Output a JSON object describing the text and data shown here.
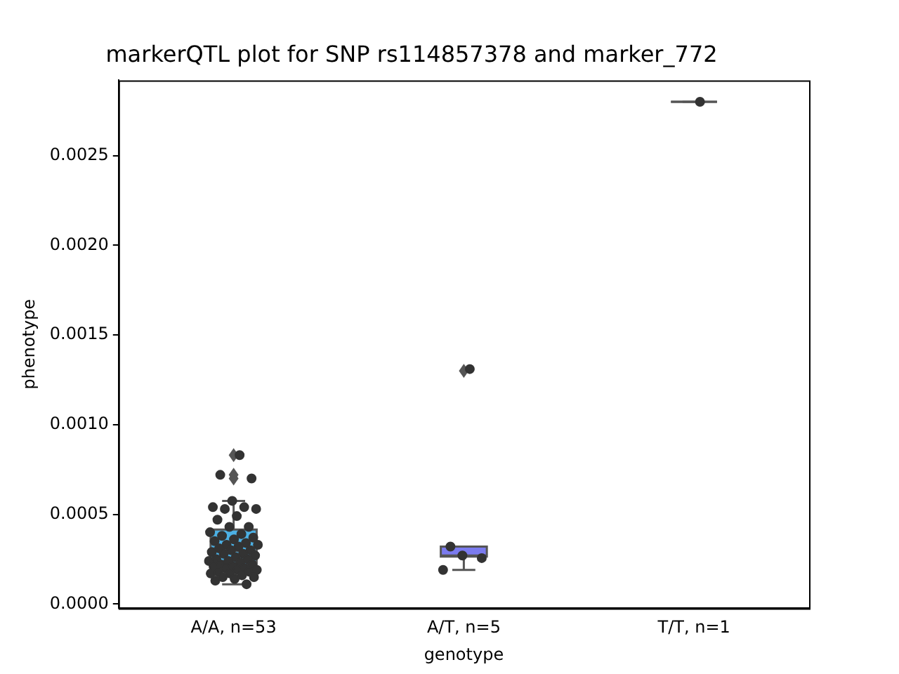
{
  "chart_data": {
    "type": "box",
    "title": "markerQTL plot for SNP rs114857378 and marker_772",
    "xlabel": "genotype",
    "ylabel": "phenotype",
    "categories": [
      "A/A, n=53",
      "A/T, n=5",
      "T/T, n=1"
    ],
    "colors": [
      "#4cb0e4",
      "#7b7bef",
      "#555555"
    ],
    "boxes": [
      {
        "low": 0.00011,
        "q1": 0.000216,
        "median": 0.000296,
        "q3": 0.000415,
        "high": 0.000575,
        "outliers": [
          0.00083,
          0.00072,
          0.0007
        ]
      },
      {
        "low": 0.00019,
        "q1": 0.000264,
        "median": 0.00027,
        "q3": 0.00032,
        "high": 0.00032,
        "outliers": [
          0.0013
        ]
      },
      {
        "low": 0.0028,
        "q1": 0.0028,
        "median": 0.0028,
        "q3": 0.0028,
        "high": 0.0028
      }
    ],
    "series": [
      {
        "type": "scatter",
        "color": "#333333",
        "x": [
          "A/A, n=53",
          "A/A, n=53",
          "A/A, n=53",
          "A/A, n=53",
          "A/A, n=53",
          "A/A, n=53",
          "A/A, n=53",
          "A/A, n=53",
          "A/A, n=53",
          "A/A, n=53",
          "A/A, n=53",
          "A/A, n=53",
          "A/A, n=53",
          "A/A, n=53",
          "A/A, n=53",
          "A/A, n=53",
          "A/A, n=53",
          "A/A, n=53",
          "A/A, n=53",
          "A/A, n=53",
          "A/A, n=53",
          "A/A, n=53",
          "A/A, n=53",
          "A/A, n=53",
          "A/A, n=53",
          "A/A, n=53",
          "A/A, n=53",
          "A/A, n=53",
          "A/A, n=53",
          "A/A, n=53",
          "A/A, n=53",
          "A/A, n=53",
          "A/A, n=53",
          "A/A, n=53",
          "A/A, n=53",
          "A/A, n=53",
          "A/A, n=53",
          "A/A, n=53",
          "A/A, n=53",
          "A/A, n=53",
          "A/A, n=53",
          "A/A, n=53",
          "A/A, n=53",
          "A/A, n=53",
          "A/A, n=53",
          "A/A, n=53",
          "A/A, n=53",
          "A/A, n=53",
          "A/A, n=53",
          "A/A, n=53",
          "A/A, n=53",
          "A/A, n=53",
          "A/A, n=53",
          "A/T, n=5",
          "A/T, n=5",
          "A/T, n=5",
          "A/T, n=5",
          "A/T, n=5",
          "T/T, n=1"
        ],
        "values": [
          0.00083,
          0.00072,
          0.0007,
          0.000575,
          0.00054,
          0.00054,
          0.00053,
          0.00053,
          0.00049,
          0.00047,
          0.00043,
          0.00043,
          0.0004,
          0.00039,
          0.00038,
          0.00037,
          0.00036,
          0.00035,
          0.00034,
          0.00033,
          0.00033,
          0.00032,
          0.00031,
          0.0003,
          0.0003,
          0.00029,
          0.00028,
          0.00028,
          0.00027,
          0.00026,
          0.00025,
          0.00025,
          0.00024,
          0.00024,
          0.00023,
          0.00022,
          0.00022,
          0.00021,
          0.00021,
          0.0002,
          0.0002,
          0.00019,
          0.00019,
          0.00018,
          0.00018,
          0.00017,
          0.00017,
          0.00016,
          0.00015,
          0.00015,
          0.00014,
          0.00013,
          0.00011,
          0.00131,
          0.00032,
          0.000256,
          0.00027,
          0.00019,
          0.0028
        ]
      }
    ],
    "ylim": [
      -2.4e-05,
      0.00292
    ],
    "yticks": [
      {
        "value": 0,
        "label": "0.0000"
      },
      {
        "value": 0.0005,
        "label": "0.0005"
      },
      {
        "value": 0.001,
        "label": "0.0010"
      },
      {
        "value": 0.0015,
        "label": "0.0015"
      },
      {
        "value": 0.002,
        "label": "0.0020"
      },
      {
        "value": 0.0025,
        "label": "0.0025"
      }
    ],
    "grid": false,
    "legend": false,
    "marker": "circle"
  }
}
